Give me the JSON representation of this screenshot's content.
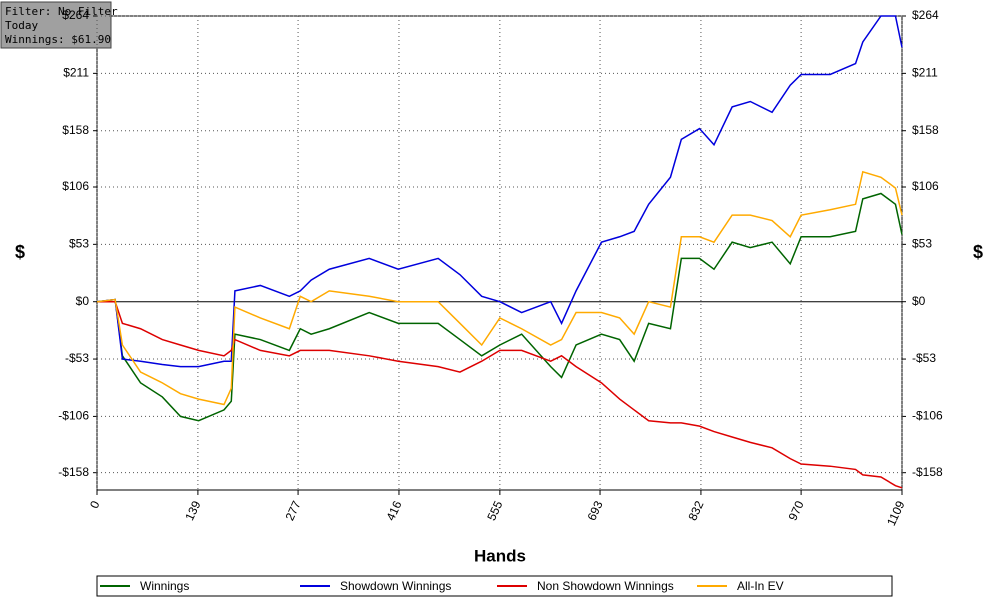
{
  "info_box": [
    "Filter: No Filter",
    "Today",
    "Winnings: $61.90"
  ],
  "chart_data": {
    "type": "line",
    "x_label": "Hands",
    "y_label": "$",
    "x": [
      0,
      25,
      35,
      60,
      90,
      115,
      140,
      175,
      185,
      190,
      225,
      265,
      280,
      295,
      320,
      375,
      415,
      470,
      500,
      530,
      555,
      585,
      625,
      640,
      660,
      695,
      720,
      740,
      760,
      790,
      805,
      830,
      850,
      875,
      900,
      930,
      955,
      970,
      1010,
      1045,
      1055,
      1080,
      1100,
      1109
    ],
    "series": [
      {
        "name": "Winnings",
        "color": "#006400",
        "values": [
          0,
          2,
          -50,
          -75,
          -88,
          -106,
          -110,
          -100,
          -92,
          -30,
          -35,
          -45,
          -25,
          -30,
          -25,
          -10,
          -20,
          -20,
          -35,
          -50,
          -40,
          -30,
          -60,
          -70,
          -40,
          -30,
          -35,
          -55,
          -20,
          -25,
          40,
          40,
          30,
          55,
          50,
          55,
          35,
          60,
          60,
          65,
          95,
          100,
          90,
          62
        ]
      },
      {
        "name": "Showdown Winnings",
        "color": "#0000dd",
        "values": [
          0,
          2,
          -53,
          -55,
          -58,
          -60,
          -60,
          -55,
          -55,
          10,
          15,
          5,
          10,
          20,
          30,
          40,
          30,
          40,
          25,
          5,
          0,
          -10,
          0,
          -20,
          10,
          55,
          60,
          65,
          90,
          115,
          150,
          160,
          145,
          180,
          185,
          175,
          200,
          210,
          210,
          220,
          240,
          264,
          264,
          235
        ]
      },
      {
        "name": "Non Showdown Winnings",
        "color": "#dd0000",
        "values": [
          0,
          0,
          -20,
          -25,
          -35,
          -40,
          -45,
          -50,
          -45,
          -35,
          -45,
          -50,
          -45,
          -45,
          -45,
          -50,
          -55,
          -60,
          -65,
          -55,
          -45,
          -45,
          -55,
          -50,
          -60,
          -75,
          -90,
          -100,
          -110,
          -112,
          -112,
          -115,
          -120,
          -125,
          -130,
          -135,
          -145,
          -150,
          -152,
          -155,
          -160,
          -162,
          -170,
          -172
        ]
      },
      {
        "name": "All-In EV",
        "color": "#ffaa00",
        "values": [
          0,
          2,
          -40,
          -65,
          -75,
          -85,
          -90,
          -95,
          -80,
          -5,
          -15,
          -25,
          5,
          0,
          10,
          5,
          0,
          0,
          -20,
          -40,
          -15,
          -25,
          -40,
          -35,
          -10,
          -10,
          -15,
          -30,
          0,
          -5,
          60,
          60,
          55,
          80,
          80,
          75,
          60,
          80,
          85,
          90,
          120,
          115,
          105,
          80
        ]
      }
    ],
    "xlim": [
      0,
      1109
    ],
    "xticks": [
      0,
      139,
      277,
      416,
      555,
      693,
      832,
      970,
      1109
    ],
    "ylim": [
      -174,
      264
    ],
    "yticks": [
      {
        "value": 264,
        "label": "$264"
      },
      {
        "value": 211,
        "label": "$211"
      },
      {
        "value": 158,
        "label": "$158"
      },
      {
        "value": 106,
        "label": "$106"
      },
      {
        "value": 53,
        "label": "$53"
      },
      {
        "value": 0,
        "label": "$0"
      },
      {
        "value": -53,
        "label": "-$53"
      },
      {
        "value": -106,
        "label": "-$106"
      },
      {
        "value": -158,
        "label": "-$158"
      }
    ],
    "grid": true
  }
}
